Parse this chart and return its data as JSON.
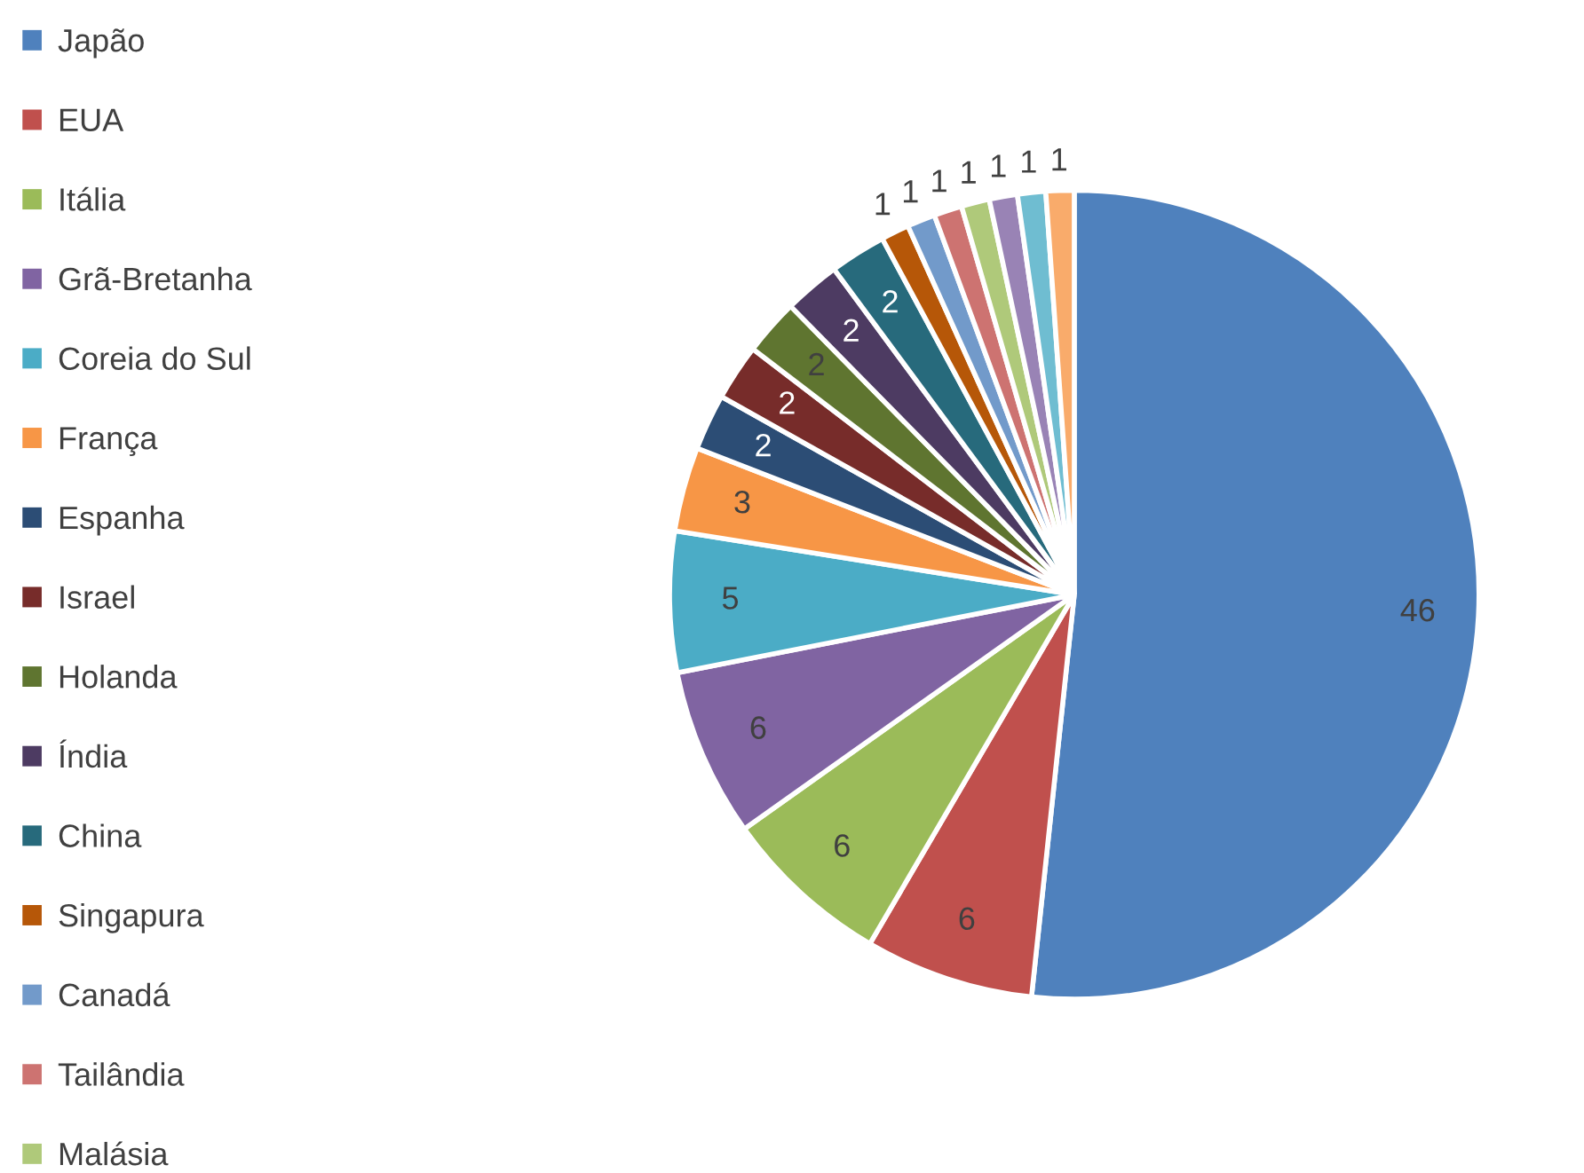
{
  "chart_data": {
    "type": "pie",
    "categories": [
      "Japão",
      "EUA",
      "Itália",
      "Grã-Bretanha",
      "Coreia do Sul",
      "França",
      "Espanha",
      "Israel",
      "Holanda",
      "Índia",
      "China",
      "Singapura",
      "Canadá",
      "Tailândia",
      "Malásia",
      null,
      null,
      null
    ],
    "values": [
      46,
      6,
      6,
      6,
      5,
      3,
      2,
      2,
      2,
      2,
      2,
      1,
      1,
      1,
      1,
      1,
      1,
      1
    ],
    "colors": [
      "#4f81bd",
      "#c0504d",
      "#9bbb59",
      "#8064a2",
      "#4bacc6",
      "#f79646",
      "#2c4d75",
      "#772c2a",
      "#5f7530",
      "#4d3b62",
      "#276a7c",
      "#b65708",
      "#729aca",
      "#cd7371",
      "#afc97a",
      "#9983b5",
      "#6fbdd1",
      "#f9ab6b"
    ],
    "data_labels": true,
    "legend": "left"
  }
}
